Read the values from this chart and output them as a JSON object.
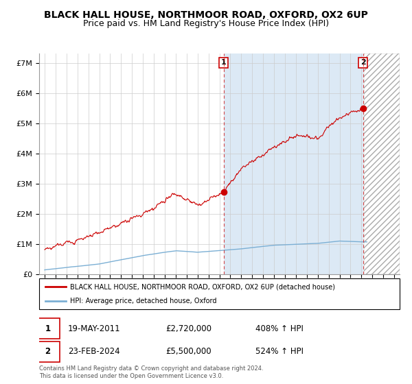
{
  "title": "BLACK HALL HOUSE, NORTHMOOR ROAD, OXFORD, OX2 6UP",
  "subtitle": "Price paid vs. HM Land Registry's House Price Index (HPI)",
  "title_fontsize": 10,
  "subtitle_fontsize": 9,
  "ylabel_ticks": [
    "£0",
    "£1M",
    "£2M",
    "£3M",
    "£4M",
    "£5M",
    "£6M",
    "£7M"
  ],
  "ytick_values": [
    0,
    1000000,
    2000000,
    3000000,
    4000000,
    5000000,
    6000000,
    7000000
  ],
  "ylim": [
    0,
    7300000
  ],
  "xlim_start": 1994.5,
  "xlim_end": 2027.5,
  "hatch_start": 2024.25,
  "shade_start": 2011.38,
  "shade_end": 2024.14,
  "sale1_x": 2011.38,
  "sale1_y": 2720000,
  "sale2_x": 2024.14,
  "sale2_y": 5500000,
  "legend_line1": "BLACK HALL HOUSE, NORTHMOOR ROAD, OXFORD, OX2 6UP (detached house)",
  "legend_line2": "HPI: Average price, detached house, Oxford",
  "table_row1_num": "1",
  "table_row1_date": "19-MAY-2011",
  "table_row1_price": "£2,720,000",
  "table_row1_hpi": "408% ↑ HPI",
  "table_row2_num": "2",
  "table_row2_date": "23-FEB-2024",
  "table_row2_price": "£5,500,000",
  "table_row2_hpi": "524% ↑ HPI",
  "footer": "Contains HM Land Registry data © Crown copyright and database right 2024.\nThis data is licensed under the Open Government Licence v3.0.",
  "red_color": "#CC0000",
  "blue_color": "#7BAFD4",
  "shade_color": "#DCE9F5",
  "bg_color": "#FFFFFF",
  "grid_color": "#CCCCCC"
}
